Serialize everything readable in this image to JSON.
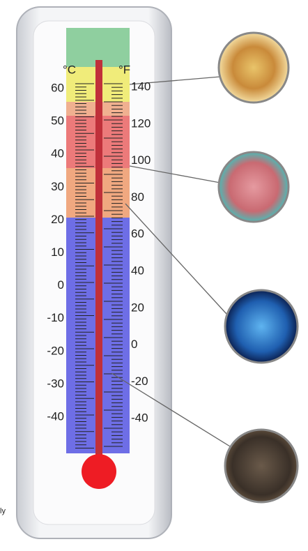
{
  "scale": {
    "celsius_unit": "°C",
    "fahrenheit_unit": "°F",
    "celsius": [
      "60",
      "50",
      "40",
      "30",
      "20",
      "10",
      "0",
      "-10",
      "-20",
      "-30",
      "-40"
    ],
    "fahrenheit": [
      "140",
      "120",
      "100",
      "80",
      "60",
      "40",
      "20",
      "0",
      "-20",
      "-40"
    ]
  },
  "footnote": "ly"
}
